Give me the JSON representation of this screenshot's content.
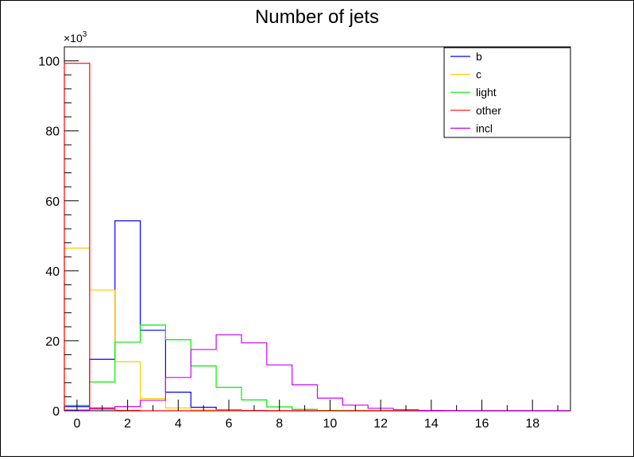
{
  "chart_data": {
    "type": "histogram",
    "title": "Number of jets",
    "xlabel": "",
    "ylabel": "",
    "y_multiplier_label": "×10",
    "y_multiplier_exponent": "3",
    "xlim": [
      -0.5,
      19.5
    ],
    "ylim": [
      0,
      104000
    ],
    "x_ticks": [
      "0",
      "2",
      "4",
      "6",
      "8",
      "10",
      "12",
      "14",
      "16",
      "18"
    ],
    "y_ticks": [
      "0",
      "20",
      "40",
      "60",
      "80",
      "100"
    ],
    "bin_width": 1,
    "bin_centers": [
      0,
      1,
      2,
      3,
      4,
      5,
      6,
      7,
      8,
      9,
      10,
      11,
      12,
      13,
      14,
      15,
      16,
      17,
      18,
      19
    ],
    "legend_position": "top-right",
    "grid": false,
    "series": [
      {
        "name": "b",
        "color": "#0000ff",
        "values": [
          1200,
          14700,
          54300,
          23000,
          5300,
          1000,
          200,
          50,
          0,
          0,
          0,
          0,
          0,
          0,
          0,
          0,
          0,
          0,
          0,
          0
        ]
      },
      {
        "name": "c",
        "color": "#ffcc00",
        "values": [
          46500,
          34500,
          14000,
          3500,
          800,
          200,
          50,
          0,
          0,
          0,
          0,
          0,
          0,
          0,
          0,
          0,
          0,
          0,
          0,
          0
        ]
      },
      {
        "name": "light",
        "color": "#00ee00",
        "values": [
          1500,
          8200,
          19600,
          24500,
          20300,
          12800,
          6700,
          3100,
          1100,
          400,
          100,
          30,
          0,
          0,
          0,
          0,
          0,
          0,
          0,
          0
        ]
      },
      {
        "name": "other",
        "color": "#ff0000",
        "values": [
          99300,
          500,
          100,
          0,
          0,
          0,
          0,
          0,
          0,
          0,
          0,
          0,
          0,
          0,
          0,
          0,
          0,
          0,
          0,
          0
        ]
      },
      {
        "name": "incl",
        "color": "#cc00ff",
        "values": [
          200,
          800,
          1200,
          3000,
          9500,
          17500,
          21700,
          19400,
          13100,
          7400,
          3600,
          1600,
          700,
          300,
          100,
          30,
          0,
          0,
          0,
          0
        ]
      }
    ]
  }
}
